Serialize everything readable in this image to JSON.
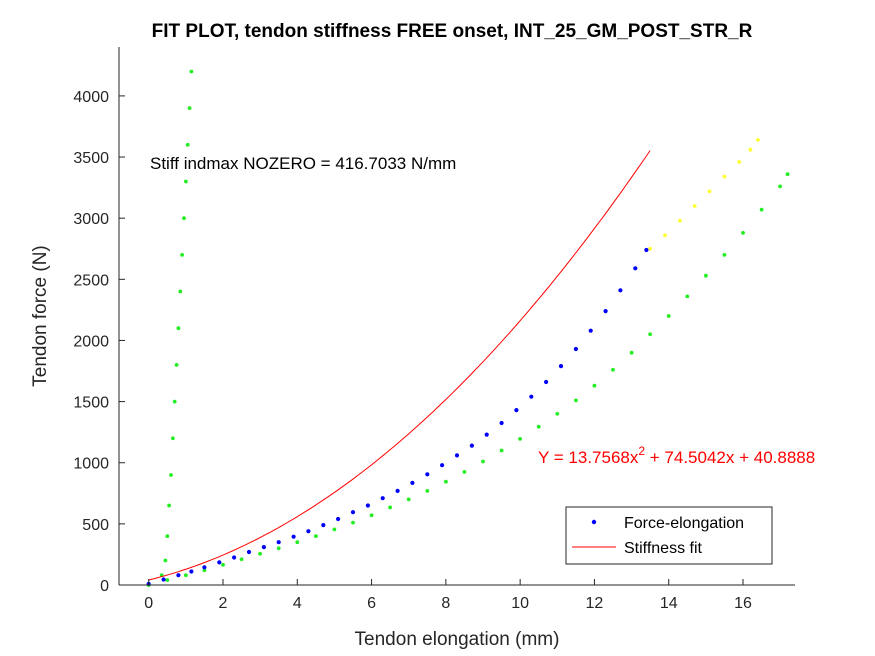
{
  "chart_data": {
    "type": "scatter",
    "title": "FIT PLOT, tendon stiffness FREE onset, INT_25_GM_POST_STR_R",
    "xlabel": "Tendon elongation (mm)",
    "ylabel": "Tendon force (N)",
    "xlim": [
      -0.8,
      17.4
    ],
    "ylim": [
      0,
      4400
    ],
    "xticks": [
      0,
      2,
      4,
      6,
      8,
      10,
      12,
      14,
      16
    ],
    "yticks": [
      0,
      500,
      1000,
      1500,
      2000,
      2500,
      3000,
      3500,
      4000
    ],
    "grid": false,
    "legend_position": "bottom-right",
    "stiffness_annotation": "Stiff indmax NOZERO = 416.7033 N/mm",
    "fit_equation": {
      "prefix": "Y = 13.7568x",
      "exponent": "2",
      "suffix": " + 74.5042x + 40.8888"
    },
    "fit_coefficients": {
      "a": 13.7568,
      "b": 74.5042,
      "c": 40.8888
    },
    "fit_range": [
      0,
      13.5
    ],
    "legend": [
      "Force-elongation",
      "Stiffness fit"
    ],
    "colors": {
      "force_elongation": "#0000ff",
      "stiffness_fit": "#ff0000",
      "green_series": "#22ee22",
      "yellow_series": "#ffff33",
      "equation_text": "#ff0000"
    },
    "series": [
      {
        "name": "Force-elongation",
        "points": [
          [
            0.0,
            10
          ],
          [
            0.4,
            45
          ],
          [
            0.8,
            80
          ],
          [
            1.15,
            110
          ],
          [
            1.5,
            145
          ],
          [
            1.9,
            185
          ],
          [
            2.3,
            225
          ],
          [
            2.7,
            270
          ],
          [
            3.1,
            310
          ],
          [
            3.5,
            350
          ],
          [
            3.9,
            395
          ],
          [
            4.3,
            440
          ],
          [
            4.7,
            490
          ],
          [
            5.1,
            540
          ],
          [
            5.5,
            595
          ],
          [
            5.9,
            650
          ],
          [
            6.3,
            710
          ],
          [
            6.7,
            770
          ],
          [
            7.1,
            835
          ],
          [
            7.5,
            905
          ],
          [
            7.9,
            980
          ],
          [
            8.3,
            1060
          ],
          [
            8.7,
            1140
          ],
          [
            9.1,
            1230
          ],
          [
            9.5,
            1325
          ],
          [
            9.9,
            1430
          ],
          [
            10.3,
            1540
          ],
          [
            10.7,
            1660
          ],
          [
            11.1,
            1790
          ],
          [
            11.5,
            1930
          ],
          [
            11.9,
            2080
          ],
          [
            12.3,
            2240
          ],
          [
            12.7,
            2410
          ],
          [
            13.1,
            2590
          ],
          [
            13.4,
            2740
          ]
        ]
      },
      {
        "name": "",
        "points": [
          [
            0.0,
            0
          ],
          [
            0.5,
            40
          ],
          [
            1.0,
            80
          ],
          [
            1.5,
            120
          ],
          [
            2.0,
            165
          ],
          [
            2.5,
            210
          ],
          [
            3.0,
            255
          ],
          [
            3.5,
            300
          ],
          [
            4.0,
            350
          ],
          [
            4.5,
            400
          ],
          [
            5.0,
            455
          ],
          [
            5.5,
            510
          ],
          [
            6.0,
            570
          ],
          [
            6.5,
            635
          ],
          [
            7.0,
            700
          ],
          [
            7.5,
            770
          ],
          [
            8.0,
            845
          ],
          [
            8.5,
            925
          ],
          [
            9.0,
            1010
          ],
          [
            9.5,
            1100
          ],
          [
            10.0,
            1195
          ],
          [
            10.5,
            1295
          ],
          [
            11.0,
            1400
          ],
          [
            11.5,
            1510
          ],
          [
            12.0,
            1630
          ],
          [
            12.5,
            1760
          ],
          [
            13.0,
            1900
          ],
          [
            13.5,
            2050
          ],
          [
            14.0,
            2200
          ],
          [
            14.5,
            2360
          ],
          [
            15.0,
            2530
          ],
          [
            15.5,
            2700
          ],
          [
            16.0,
            2880
          ],
          [
            16.5,
            3070
          ],
          [
            17.0,
            3260
          ],
          [
            17.2,
            3360
          ]
        ]
      },
      {
        "name": "",
        "points": [
          [
            13.5,
            2750
          ],
          [
            13.9,
            2860
          ],
          [
            14.3,
            2980
          ],
          [
            14.7,
            3100
          ],
          [
            15.1,
            3220
          ],
          [
            15.5,
            3340
          ],
          [
            15.9,
            3460
          ],
          [
            16.2,
            3560
          ],
          [
            16.4,
            3640
          ]
        ]
      },
      {
        "name": "",
        "points": [
          [
            0.0,
            0
          ],
          [
            0.35,
            80
          ],
          [
            0.45,
            200
          ],
          [
            0.5,
            400
          ],
          [
            0.55,
            650
          ],
          [
            0.6,
            900
          ],
          [
            0.65,
            1200
          ],
          [
            0.7,
            1500
          ],
          [
            0.75,
            1800
          ],
          [
            0.8,
            2100
          ],
          [
            0.85,
            2400
          ],
          [
            0.9,
            2700
          ],
          [
            0.95,
            3000
          ],
          [
            1.0,
            3300
          ],
          [
            1.05,
            3600
          ],
          [
            1.1,
            3900
          ],
          [
            1.15,
            4200
          ]
        ]
      }
    ]
  }
}
